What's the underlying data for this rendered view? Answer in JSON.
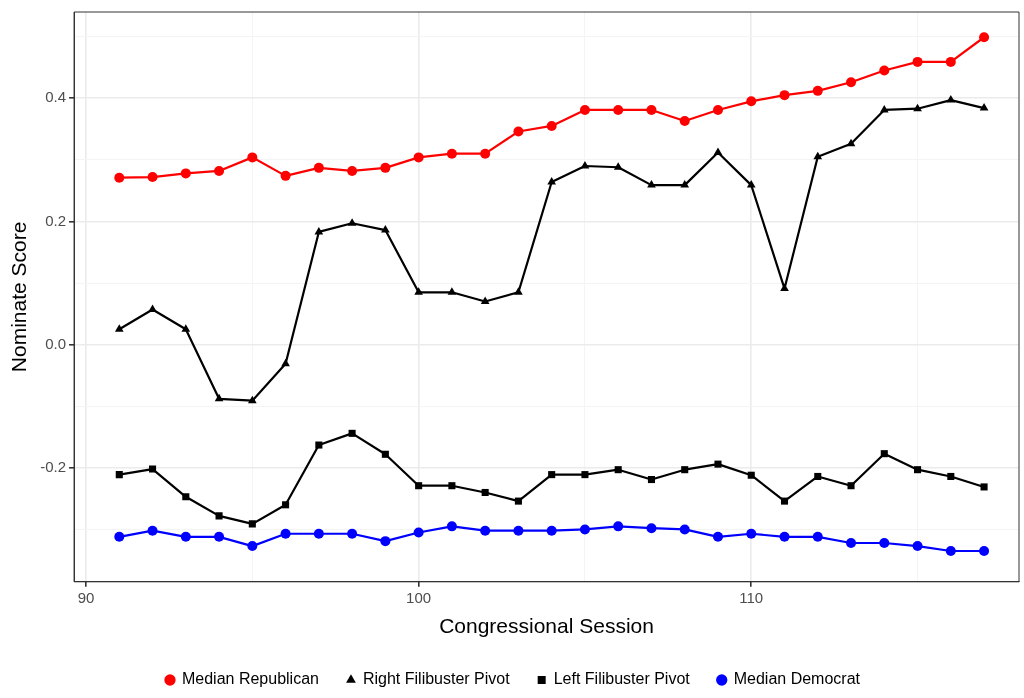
{
  "chart_data": {
    "type": "line",
    "xlabel": "Congressional Session",
    "ylabel": "Nominate Score",
    "x": [
      91,
      92,
      93,
      94,
      95,
      96,
      97,
      98,
      99,
      100,
      101,
      102,
      103,
      104,
      105,
      106,
      107,
      108,
      109,
      110,
      111,
      112,
      113,
      114,
      115,
      116,
      117
    ],
    "series": [
      {
        "name": "Median Republican",
        "color": "#ff0000",
        "marker": "circle",
        "values": [
          0.271,
          0.272,
          0.278,
          0.282,
          0.304,
          0.274,
          0.287,
          0.282,
          0.287,
          0.304,
          0.31,
          0.31,
          0.346,
          0.355,
          0.381,
          0.381,
          0.381,
          0.363,
          0.381,
          0.395,
          0.405,
          0.412,
          0.426,
          0.445,
          0.459,
          0.459,
          0.499
        ]
      },
      {
        "name": "Right Filibuster Pivot",
        "color": "#000000",
        "marker": "triangle",
        "values": [
          0.025,
          0.057,
          0.025,
          -0.088,
          -0.091,
          -0.031,
          0.183,
          0.197,
          0.186,
          0.085,
          0.085,
          0.07,
          0.085,
          0.264,
          0.29,
          0.288,
          0.259,
          0.259,
          0.312,
          0.259,
          0.091,
          0.305,
          0.326,
          0.381,
          0.383,
          0.397,
          0.384
        ]
      },
      {
        "name": "Left Filibuster Pivot",
        "color": "#000000",
        "marker": "square",
        "values": [
          -0.211,
          -0.202,
          -0.247,
          -0.278,
          -0.291,
          -0.26,
          -0.163,
          -0.144,
          -0.178,
          -0.229,
          -0.229,
          -0.24,
          -0.254,
          -0.211,
          -0.211,
          -0.203,
          -0.219,
          -0.203,
          -0.194,
          -0.212,
          -0.254,
          -0.214,
          -0.229,
          -0.177,
          -0.203,
          -0.214,
          -0.231
        ]
      },
      {
        "name": "Median Democrat",
        "color": "#0000ff",
        "marker": "circle",
        "values": [
          -0.312,
          -0.302,
          -0.312,
          -0.312,
          -0.327,
          -0.307,
          -0.307,
          -0.307,
          -0.319,
          -0.305,
          -0.295,
          -0.302,
          -0.302,
          -0.302,
          -0.3,
          -0.295,
          -0.298,
          -0.3,
          -0.312,
          -0.307,
          -0.312,
          -0.312,
          -0.322,
          -0.322,
          -0.327,
          -0.335,
          -0.335
        ]
      }
    ],
    "xlim": [
      89.64,
      118.05
    ],
    "xticks": [
      90,
      {
        "value": 95,
        "label": null
      },
      100,
      {
        "value": 105,
        "label": null
      },
      110,
      {
        "value": 115,
        "label": null
      }
    ],
    "ylim": [
      -0.385,
      0.54
    ],
    "yticks": [
      {
        "value": -0.3,
        "label": null
      },
      {
        "value": -0.2,
        "label": "-0.2"
      },
      {
        "value": -0.1,
        "label": null
      },
      {
        "value": 0,
        "label": "0.0"
      },
      {
        "value": 0.1,
        "label": null
      },
      {
        "value": 0.2,
        "label": "0.2"
      },
      {
        "value": 0.3,
        "label": null
      },
      {
        "value": 0.4,
        "label": "0.4"
      },
      {
        "value": 0.5,
        "label": null
      }
    ],
    "grid": true,
    "legend": "bottom",
    "line_style": "solid"
  }
}
